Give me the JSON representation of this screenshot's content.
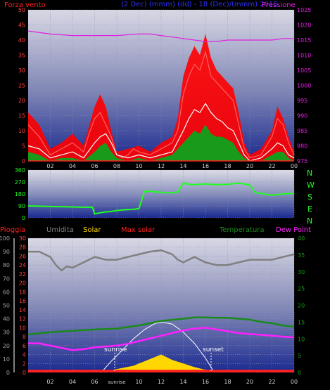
{
  "colors": {
    "wind": "#ff2020",
    "gust": "#ff0000",
    "avgwind": "#ffffff",
    "greenfill": "#1a9a1a",
    "pressure": "#e020e0",
    "direction": "#20ff20",
    "rain": "#ff2020",
    "humidity": "#808080",
    "solar": "#ffd700",
    "maxsolar": "#ff2020",
    "temperature": "#1a8a1a",
    "dewpoint": "#ff20ff",
    "bluetitle": "#3030ff"
  },
  "header": {
    "left": "Forza vento",
    "center": "(2 Dec) (mmm) (dd) - 18 (Dec)/(mmm) 2015",
    "right": "Pressione"
  },
  "middle_labels": [
    "N",
    "W",
    "S",
    "E",
    "N"
  ],
  "bottom_header": {
    "rain": "Pioggia",
    "humidity": "Umidita",
    "solar": "Solar",
    "maxsolar": "Max solar",
    "temperature": "Temperatura",
    "dewpoint": "Dew Point"
  },
  "annotations": {
    "sunrise": "sunrise",
    "sunset": "sunset",
    "sunrise_tick": "sunrise"
  },
  "chart_data": [
    {
      "type": "line",
      "name": "wind-pressure",
      "x_ticks": [
        "02",
        "04",
        "06",
        "08",
        "10",
        "12",
        "14",
        "16",
        "18",
        "20",
        "22",
        "00"
      ],
      "y_left_ticks": [
        0,
        5,
        10,
        15,
        20,
        25,
        30,
        35,
        40,
        45,
        50
      ],
      "y_left_range": [
        0,
        50
      ],
      "y_right_ticks": [
        975,
        980,
        985,
        990,
        995,
        1000,
        1005,
        1010,
        1015,
        1020,
        1025
      ],
      "y_right_range": [
        975,
        1025
      ],
      "series": [
        {
          "name": "wind",
          "x": [
            0,
            1,
            2,
            3,
            4,
            5,
            5.5,
            6,
            6.5,
            7,
            7.5,
            8,
            8.5,
            9,
            9.5,
            10,
            11,
            12,
            13,
            13.5,
            14,
            14.5,
            15,
            15.5,
            16,
            16.5,
            17,
            17.5,
            18,
            18.5,
            19,
            19.5,
            20,
            21,
            22,
            22.5,
            23,
            23.5,
            24
          ],
          "y": [
            12,
            8,
            2,
            4,
            6,
            3,
            9,
            14,
            16,
            12,
            8,
            2,
            1,
            2,
            4,
            3,
            2,
            4,
            6,
            10,
            22,
            28,
            32,
            30,
            36,
            28,
            26,
            24,
            22,
            20,
            12,
            4,
            1,
            2,
            8,
            14,
            12,
            6,
            2
          ]
        },
        {
          "name": "gust",
          "x": [
            0,
            1,
            2,
            3,
            4,
            5,
            6,
            6.5,
            7,
            7.5,
            8,
            9,
            10,
            11,
            12,
            13,
            13.5,
            14,
            14.5,
            15,
            15.5,
            16,
            16.5,
            17,
            17.5,
            18,
            18.5,
            19,
            19.5,
            20,
            21,
            22,
            22.5,
            23,
            23.5,
            24
          ],
          "y": [
            16,
            12,
            4,
            6,
            9,
            5,
            18,
            22,
            18,
            10,
            3,
            4,
            5,
            3,
            6,
            8,
            14,
            28,
            34,
            38,
            35,
            42,
            34,
            30,
            28,
            26,
            24,
            16,
            6,
            2,
            4,
            10,
            18,
            14,
            8,
            3
          ]
        },
        {
          "name": "avgwind",
          "x": [
            0,
            1,
            2,
            3,
            4,
            5,
            6,
            6.5,
            7,
            7.5,
            8,
            9,
            10,
            11,
            12,
            13,
            14,
            14.5,
            15,
            15.5,
            16,
            16.5,
            17,
            17.5,
            18,
            18.5,
            19,
            19.5,
            20,
            21,
            22,
            22.5,
            23,
            23.5,
            24
          ],
          "y": [
            5,
            4,
            1,
            2,
            3,
            1,
            6,
            8,
            9,
            6,
            2,
            1,
            2,
            1,
            2,
            3,
            10,
            14,
            17,
            16,
            19,
            16,
            14,
            13,
            11,
            10,
            6,
            2,
            0,
            1,
            4,
            6,
            5,
            2,
            1
          ]
        },
        {
          "name": "green",
          "x": [
            0,
            1,
            2,
            3,
            4,
            5,
            6,
            6.5,
            7,
            7.5,
            8,
            9,
            10,
            11,
            12,
            13,
            14,
            14.5,
            15,
            15.5,
            16,
            16.5,
            17,
            17.5,
            18,
            18.5,
            19,
            19.5,
            20,
            21,
            22,
            22.5,
            23,
            23.5,
            24
          ],
          "y": [
            3,
            2,
            0,
            1,
            1,
            0,
            3,
            5,
            6,
            3,
            1,
            0,
            1,
            0,
            1,
            2,
            6,
            8,
            10,
            9,
            12,
            9,
            8,
            8,
            7,
            6,
            3,
            1,
            0,
            0,
            2,
            3,
            3,
            1,
            0
          ]
        },
        {
          "name": "pressure",
          "x": [
            0,
            2,
            4,
            6,
            8,
            10,
            11,
            12,
            13,
            14,
            15,
            16,
            17,
            18,
            19,
            20,
            21,
            22,
            23,
            24
          ],
          "y": [
            1018,
            1017,
            1016.5,
            1016.5,
            1016.5,
            1017,
            1017,
            1016.5,
            1016,
            1015.5,
            1015,
            1014.5,
            1014.5,
            1015,
            1015,
            1015,
            1015,
            1015,
            1015.5,
            1015.5
          ]
        }
      ]
    },
    {
      "type": "line",
      "name": "direction",
      "y_ticks": [
        0,
        90,
        180,
        270,
        360
      ],
      "y_range": [
        0,
        360
      ],
      "series": [
        {
          "name": "direction",
          "x": [
            0,
            1,
            2,
            3,
            4,
            5,
            5.8,
            6,
            6.5,
            7,
            7.5,
            8,
            8.5,
            9,
            9.5,
            10,
            10.5,
            11,
            12,
            13,
            13.5,
            14,
            14.5,
            15,
            16,
            17,
            18,
            19,
            20,
            20.5,
            21,
            22,
            23,
            24
          ],
          "y": [
            90,
            88,
            85,
            84,
            82,
            80,
            80,
            30,
            38,
            45,
            48,
            55,
            60,
            62,
            64,
            70,
            200,
            200,
            192,
            188,
            195,
            262,
            252,
            250,
            255,
            250,
            252,
            262,
            248,
            190,
            185,
            170,
            180,
            185
          ]
        }
      ]
    },
    {
      "type": "line",
      "name": "climate",
      "y_left1_ticks": [
        0,
        10,
        20,
        30,
        40,
        50,
        60,
        70,
        80,
        90,
        100
      ],
      "y_left1_range": [
        0,
        100
      ],
      "y_left2_ticks": [
        0,
        2,
        4,
        6,
        8,
        10,
        12,
        14,
        16,
        18,
        20,
        22,
        24,
        26,
        28,
        30
      ],
      "y_left2_range": [
        0,
        30
      ],
      "y_right_ticks": [
        0,
        5,
        10,
        15,
        20,
        25,
        30,
        35,
        40
      ],
      "y_right_range": [
        0,
        40
      ],
      "x_ticks": [
        "02",
        "04",
        "06",
        "sunrise",
        "10",
        "12",
        "14",
        "16",
        "18",
        "20",
        "22",
        "00"
      ],
      "series": [
        {
          "name": "humidity",
          "x": [
            0,
            1,
            2,
            2.5,
            3,
            3.5,
            4,
            5,
            6,
            7,
            8,
            9,
            10,
            11,
            12,
            13,
            13.5,
            14,
            15,
            16,
            17,
            18,
            19,
            20,
            21,
            22,
            23,
            24
          ],
          "y": [
            90,
            90,
            86,
            80,
            76,
            79,
            78,
            82,
            86,
            84,
            84,
            86,
            88,
            90,
            91,
            88,
            84,
            82,
            86,
            82,
            80,
            80,
            82,
            84,
            84,
            84,
            86,
            88
          ]
        },
        {
          "name": "temperature",
          "x": [
            0,
            2,
            4,
            6,
            8,
            10,
            12,
            14,
            15,
            16,
            17,
            18,
            19,
            20,
            21,
            22,
            23,
            24
          ],
          "y": [
            8.5,
            9,
            9.3,
            9.6,
            9.8,
            10.5,
            11.5,
            12,
            12.3,
            12.3,
            12.2,
            12.2,
            12,
            11.8,
            11.3,
            11,
            10.5,
            10.2
          ]
        },
        {
          "name": "dewpoint",
          "x": [
            0,
            1,
            2,
            3,
            4,
            5,
            6,
            7,
            8,
            9,
            10,
            11,
            12,
            13,
            14,
            15,
            16,
            17,
            18,
            19,
            20,
            21,
            22,
            23,
            24
          ],
          "y": [
            6.5,
            6.5,
            6.0,
            5.5,
            5.0,
            5.2,
            5.6,
            5.8,
            6.0,
            6.4,
            7.0,
            7.6,
            8.2,
            8.8,
            9.4,
            9.8,
            10.0,
            9.6,
            9.2,
            8.8,
            8.6,
            8.4,
            8.2,
            8.0,
            7.8
          ]
        },
        {
          "name": "maxsolar",
          "x": [
            6.6,
            7.5,
            8.5,
            9.5,
            10.5,
            11.5,
            12.2,
            13,
            14,
            15,
            16,
            16.8
          ],
          "y": [
            0,
            2.5,
            5,
            7.5,
            9.6,
            11,
            11.2,
            10.8,
            9,
            6.5,
            3.2,
            0
          ]
        },
        {
          "name": "solar",
          "x": [
            6.6,
            7.5,
            8.5,
            9.5,
            10,
            10.5,
            11,
            11.5,
            12,
            12.5,
            13,
            13.5,
            14,
            15,
            16,
            16.8
          ],
          "y": [
            0,
            0.5,
            1,
            1.5,
            2,
            2.5,
            3,
            3.5,
            4,
            3.4,
            2.8,
            2.4,
            2,
            1.2,
            0.6,
            0
          ]
        },
        {
          "name": "rain",
          "x": [
            0,
            24
          ],
          "y": [
            0.6,
            0.6
          ]
        }
      ]
    }
  ]
}
